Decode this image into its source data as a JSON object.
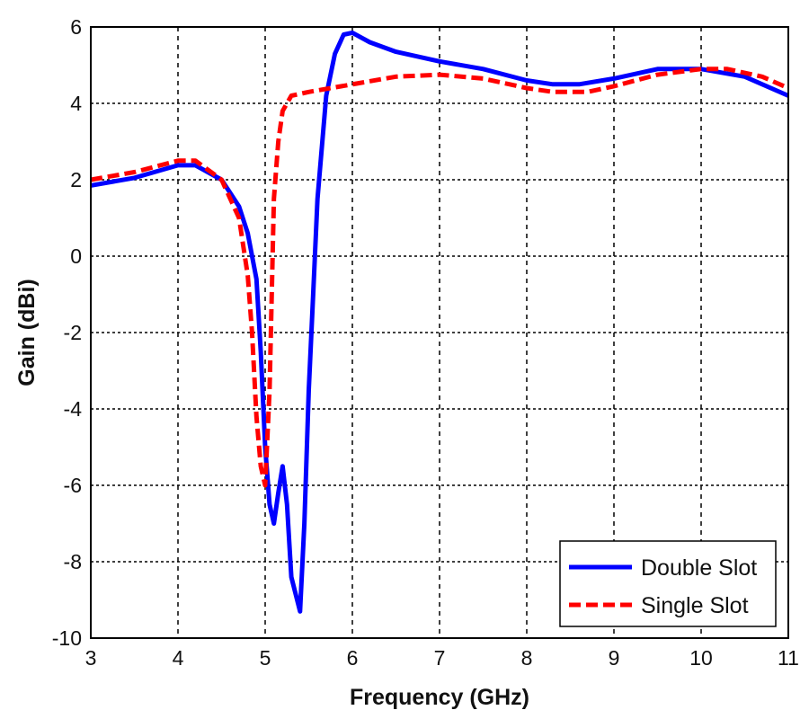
{
  "chart_data": {
    "type": "line",
    "title": "",
    "xlabel": "Frequency (GHz)",
    "ylabel": "Gain (dBi)",
    "xlim": [
      3,
      11
    ],
    "ylim": [
      -10,
      6
    ],
    "xticks": [
      3,
      4,
      5,
      6,
      7,
      8,
      9,
      10,
      11
    ],
    "yticks": [
      -10,
      -8,
      -6,
      -4,
      -2,
      0,
      2,
      4,
      6
    ],
    "grid": true,
    "legend_position": "bottom-right",
    "series": [
      {
        "name": "Double Slot",
        "color": "#0000ff",
        "style": "solid",
        "x": [
          3,
          3.5,
          4,
          4.2,
          4.5,
          4.7,
          4.8,
          4.9,
          4.95,
          5.0,
          5.05,
          5.1,
          5.15,
          5.2,
          5.25,
          5.3,
          5.4,
          5.45,
          5.5,
          5.55,
          5.6,
          5.7,
          5.8,
          5.9,
          6.0,
          6.2,
          6.5,
          7,
          7.5,
          8,
          8.3,
          8.6,
          9,
          9.5,
          10,
          10.5,
          11
        ],
        "y": [
          1.85,
          2.05,
          2.38,
          2.38,
          2.0,
          1.3,
          0.6,
          -0.6,
          -2.5,
          -5.0,
          -6.5,
          -7.0,
          -6.2,
          -5.5,
          -6.5,
          -8.4,
          -9.3,
          -7.0,
          -3.5,
          -1.0,
          1.5,
          4.2,
          5.3,
          5.8,
          5.85,
          5.6,
          5.35,
          5.1,
          4.9,
          4.6,
          4.5,
          4.5,
          4.65,
          4.9,
          4.9,
          4.7,
          4.2
        ]
      },
      {
        "name": "Single Slot",
        "color": "#ff0000",
        "style": "dashed",
        "x": [
          3,
          3.5,
          4,
          4.2,
          4.5,
          4.7,
          4.8,
          4.85,
          4.9,
          4.95,
          5.0,
          5.05,
          5.08,
          5.1,
          5.15,
          5.2,
          5.3,
          5.5,
          6,
          6.5,
          7,
          7.5,
          8,
          8.3,
          8.7,
          9,
          9.5,
          10,
          10.3,
          10.7,
          11
        ],
        "y": [
          2.0,
          2.2,
          2.5,
          2.5,
          2.0,
          1.0,
          -0.5,
          -2.0,
          -4.2,
          -5.5,
          -6.0,
          -3.5,
          -0.5,
          1.5,
          3.0,
          3.8,
          4.2,
          4.3,
          4.5,
          4.7,
          4.75,
          4.65,
          4.4,
          4.3,
          4.3,
          4.45,
          4.75,
          4.9,
          4.9,
          4.7,
          4.4
        ]
      }
    ]
  }
}
